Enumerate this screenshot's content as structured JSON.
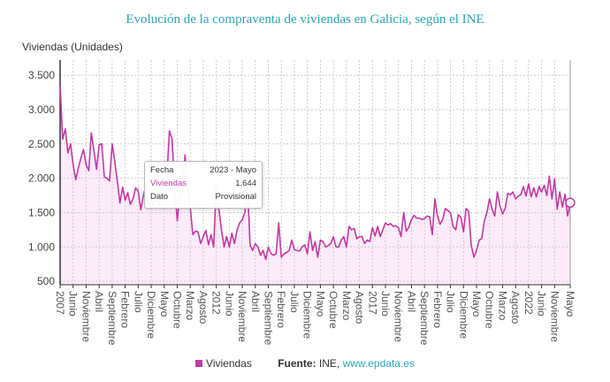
{
  "chart_data": {
    "type": "area",
    "title": "Evolución de la compraventa de viviendas en Galicia, según el INE",
    "ylabel": "Viviendas (Unidades)",
    "xlabel": "",
    "frequency": "monthly",
    "x_range": [
      "2007-01",
      "2023-05"
    ],
    "ylim": [
      450,
      3720
    ],
    "yticks": [
      500,
      1000,
      1500,
      2000,
      2500,
      3000,
      3500
    ],
    "ytick_labels": [
      "500",
      "1.000",
      "1.500",
      "2.000",
      "2.500",
      "3.000",
      "3.500"
    ],
    "xticks": [
      {
        "date": "2007-01",
        "label": "2007"
      },
      {
        "date": "2007-06",
        "label": "Junio"
      },
      {
        "date": "2007-11",
        "label": "Noviembre"
      },
      {
        "date": "2008-04",
        "label": "Abril"
      },
      {
        "date": "2008-09",
        "label": "Septiembre"
      },
      {
        "date": "2009-02",
        "label": "Febrero"
      },
      {
        "date": "2009-07",
        "label": "Julio"
      },
      {
        "date": "2009-12",
        "label": "Diciembre"
      },
      {
        "date": "2010-05",
        "label": "Mayo"
      },
      {
        "date": "2010-10",
        "label": "Octubre"
      },
      {
        "date": "2011-03",
        "label": "Marzo"
      },
      {
        "date": "2011-08",
        "label": "Agosto"
      },
      {
        "date": "2012-01",
        "label": "2012"
      },
      {
        "date": "2012-06",
        "label": "Junio"
      },
      {
        "date": "2012-11",
        "label": "Noviembre"
      },
      {
        "date": "2013-04",
        "label": "Abril"
      },
      {
        "date": "2013-09",
        "label": "Septiembre"
      },
      {
        "date": "2014-02",
        "label": "Febrero"
      },
      {
        "date": "2014-07",
        "label": "Julio"
      },
      {
        "date": "2014-12",
        "label": "Diciembre"
      },
      {
        "date": "2015-05",
        "label": "Mayo"
      },
      {
        "date": "2015-10",
        "label": "Octubre"
      },
      {
        "date": "2016-03",
        "label": "Marzo"
      },
      {
        "date": "2016-08",
        "label": "Agosto"
      },
      {
        "date": "2017-01",
        "label": "2017"
      },
      {
        "date": "2017-06",
        "label": "Junio"
      },
      {
        "date": "2017-11",
        "label": "Noviembre"
      },
      {
        "date": "2018-04",
        "label": "Abril"
      },
      {
        "date": "2018-09",
        "label": "Septiembre"
      },
      {
        "date": "2019-02",
        "label": "Febrero"
      },
      {
        "date": "2019-07",
        "label": "Julio"
      },
      {
        "date": "2019-12",
        "label": "Diciembre"
      },
      {
        "date": "2020-05",
        "label": "Mayo"
      },
      {
        "date": "2020-10",
        "label": "Octubre"
      },
      {
        "date": "2021-03",
        "label": "Marzo"
      },
      {
        "date": "2021-08",
        "label": "Agosto"
      },
      {
        "date": "2022-01",
        "label": "2022"
      },
      {
        "date": "2022-06",
        "label": "Junio"
      },
      {
        "date": "2022-11",
        "label": "Noviembre"
      },
      {
        "date": "2023-05",
        "label": "Mayo"
      }
    ],
    "grid": true,
    "legend_position": "bottom",
    "series": [
      {
        "name": "Viviendas",
        "color": "#c23aa5",
        "fill": "#fbe6f6",
        "values": [
          3350,
          2570,
          2720,
          2370,
          2500,
          2200,
          1980,
          2150,
          2300,
          2420,
          2200,
          2110,
          2660,
          2400,
          2130,
          2490,
          2500,
          2020,
          2000,
          1960,
          2500,
          2250,
          1950,
          1640,
          1870,
          1680,
          1790,
          1620,
          1700,
          1860,
          1820,
          1540,
          1750,
          1900,
          1600,
          1580,
          1650,
          1700,
          1620,
          1750,
          1900,
          2000,
          2690,
          2570,
          1900,
          1380,
          1750,
          1800,
          2340,
          1900,
          1580,
          1180,
          1230,
          1220,
          1050,
          1150,
          1240,
          1030,
          1180,
          1000,
          1900,
          1550,
          1250,
          1000,
          1150,
          1000,
          1200,
          1050,
          1250,
          1350,
          1400,
          1500,
          1900,
          1020,
          950,
          1050,
          1000,
          880,
          950,
          820,
          1000,
          900,
          880,
          900,
          1350,
          850,
          900,
          920,
          950,
          1100,
          960,
          950,
          940,
          1000,
          1030,
          900,
          1220,
          950,
          1080,
          850,
          1100,
          1080,
          1000,
          1020,
          1050,
          1150,
          1000,
          1000,
          1100,
          1150,
          1000,
          1300,
          1250,
          1270,
          1120,
          1150,
          1150,
          1050,
          1100,
          1080,
          1280,
          1160,
          1300,
          1150,
          1250,
          1350,
          1320,
          1340,
          1300,
          1310,
          1280,
          1150,
          1500,
          1230,
          1290,
          1400,
          1460,
          1420,
          1420,
          1400,
          1410,
          1450,
          1440,
          1180,
          1700,
          1450,
          1330,
          1400,
          1560,
          1530,
          1500,
          1300,
          1250,
          1470,
          1430,
          1220,
          1560,
          1520,
          1020,
          850,
          950,
          1100,
          1120,
          1380,
          1500,
          1700,
          1550,
          1450,
          1800,
          1600,
          1480,
          1560,
          1780,
          1760,
          1800,
          1700,
          1740,
          1760,
          1880,
          1740,
          1920,
          1730,
          1860,
          1730,
          1880,
          1800,
          1900,
          1750,
          2030,
          1700,
          1990,
          1550,
          1800,
          1580,
          1770,
          1450,
          1644
        ]
      }
    ],
    "tooltip": {
      "fecha_label": "Fecha",
      "fecha_value": "2023 - Mayo",
      "series_label": "Viviendas",
      "series_value": "1.644",
      "dato_label": "Dato",
      "dato_value": "Provisional"
    }
  },
  "legend": {
    "series_name": "Viviendas",
    "source_label": "Fuente:",
    "source_value": "INE,",
    "source_link": "www.epdata.es"
  }
}
